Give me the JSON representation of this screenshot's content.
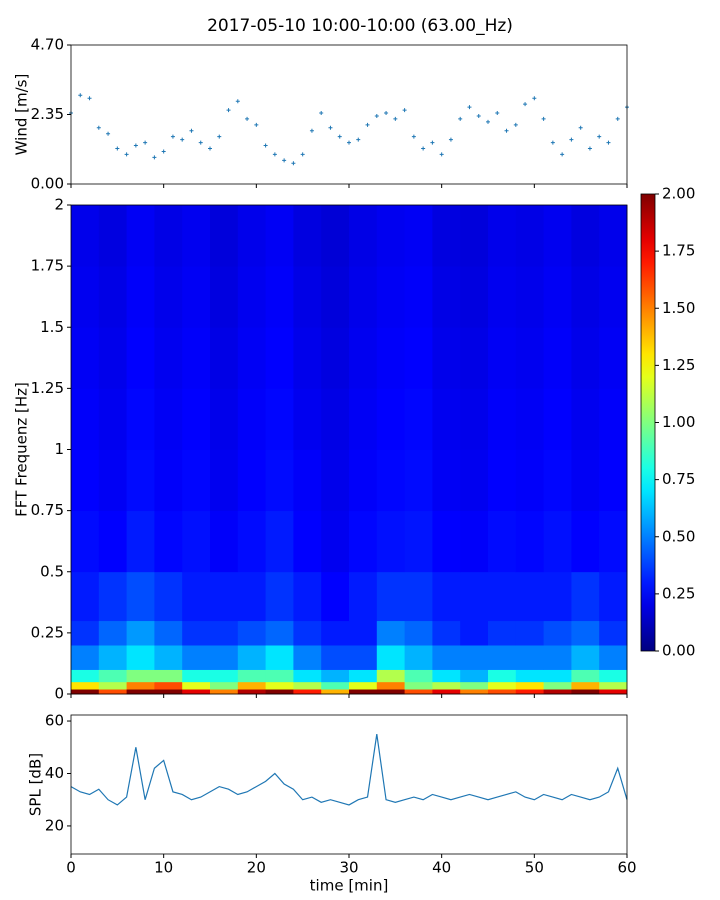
{
  "chart_data": [
    {
      "type": "scatter",
      "title": "2017-05-10 10:00-10:00 (63.00_Hz)",
      "y_label": "Wind [m/s]",
      "color": "#1f77b4",
      "x": [
        0,
        1,
        2,
        3,
        4,
        5,
        6,
        7,
        8,
        9,
        10,
        11,
        12,
        13,
        14,
        15,
        16,
        17,
        18,
        19,
        20,
        21,
        22,
        23,
        24,
        25,
        26,
        27,
        28,
        29,
        30,
        31,
        32,
        33,
        34,
        35,
        36,
        37,
        38,
        39,
        40,
        41,
        42,
        43,
        44,
        45,
        46,
        47,
        48,
        49,
        50,
        51,
        52,
        53,
        54,
        55,
        56,
        57,
        58,
        59,
        60
      ],
      "values": [
        2.4,
        3.0,
        2.9,
        1.9,
        1.7,
        1.2,
        1.0,
        1.3,
        1.4,
        0.9,
        1.1,
        1.6,
        1.5,
        1.8,
        1.4,
        1.2,
        1.6,
        2.5,
        2.8,
        2.2,
        2.0,
        1.3,
        1.0,
        0.8,
        0.7,
        1.0,
        1.8,
        2.4,
        1.9,
        1.6,
        1.4,
        1.5,
        2.0,
        2.3,
        2.4,
        2.2,
        2.5,
        1.6,
        1.2,
        1.4,
        1.0,
        1.5,
        2.2,
        2.6,
        2.3,
        2.1,
        2.4,
        1.8,
        2.0,
        2.7,
        2.9,
        2.2,
        1.4,
        1.0,
        1.5,
        1.9,
        1.2,
        1.6,
        1.4,
        2.2,
        2.6
      ],
      "xlim": [
        0,
        60
      ],
      "xticks": [
        0,
        10,
        20,
        30,
        40,
        50,
        60
      ],
      "ylim": [
        0,
        4.7
      ],
      "yticks": [
        {
          "value": 0,
          "label": "0.00"
        },
        {
          "value": 2.35,
          "label": "2.35"
        },
        {
          "value": 4.7,
          "label": "4.70"
        }
      ]
    },
    {
      "type": "heatmap",
      "y_label": "FFT Frequenz [Hz]",
      "colormap": "jet",
      "x_bins": [
        0,
        3,
        6,
        9,
        12,
        15,
        18,
        21,
        24,
        27,
        30,
        33,
        36,
        39,
        42,
        45,
        48,
        51,
        54,
        57,
        60
      ],
      "y_bins": [
        0,
        0.02,
        0.05,
        0.1,
        0.2,
        0.3,
        0.5,
        0.75,
        1,
        1.25,
        1.5,
        1.75,
        2
      ],
      "values": [
        [
          2,
          1.6,
          2,
          2,
          1.8,
          1.5,
          1.9,
          2,
          1.7,
          1.4,
          2,
          2,
          1.6,
          1.8,
          1.5,
          1.6,
          1.7,
          1.9,
          2,
          1.8
        ],
        [
          1.3,
          1.1,
          1.5,
          1.6,
          1.2,
          1.0,
          1.4,
          1.2,
          1.1,
          0.9,
          1.2,
          1.5,
          1.0,
          1.1,
          1.0,
          1.2,
          1.3,
          1.0,
          1.4,
          1.1
        ],
        [
          0.8,
          0.9,
          1.0,
          1.0,
          0.8,
          0.8,
          0.9,
          0.9,
          0.7,
          0.6,
          0.7,
          1.1,
          0.9,
          0.7,
          0.6,
          0.8,
          0.7,
          0.7,
          0.9,
          0.8
        ],
        [
          0.5,
          0.6,
          0.7,
          0.6,
          0.5,
          0.5,
          0.6,
          0.7,
          0.5,
          0.4,
          0.4,
          0.7,
          0.6,
          0.5,
          0.5,
          0.5,
          0.5,
          0.5,
          0.6,
          0.5
        ],
        [
          0.35,
          0.45,
          0.55,
          0.45,
          0.35,
          0.35,
          0.4,
          0.45,
          0.35,
          0.3,
          0.3,
          0.5,
          0.45,
          0.35,
          0.3,
          0.35,
          0.35,
          0.4,
          0.45,
          0.35
        ],
        [
          0.3,
          0.35,
          0.4,
          0.35,
          0.3,
          0.3,
          0.3,
          0.35,
          0.3,
          0.25,
          0.3,
          0.35,
          0.35,
          0.3,
          0.3,
          0.3,
          0.3,
          0.3,
          0.35,
          0.3
        ],
        [
          0.27,
          0.25,
          0.3,
          0.26,
          0.28,
          0.24,
          0.27,
          0.3,
          0.25,
          0.22,
          0.26,
          0.28,
          0.29,
          0.25,
          0.24,
          0.27,
          0.26,
          0.28,
          0.25,
          0.27
        ],
        [
          0.25,
          0.23,
          0.27,
          0.24,
          0.26,
          0.22,
          0.25,
          0.27,
          0.24,
          0.21,
          0.24,
          0.26,
          0.27,
          0.23,
          0.22,
          0.25,
          0.24,
          0.26,
          0.23,
          0.25
        ],
        [
          0.24,
          0.22,
          0.26,
          0.23,
          0.25,
          0.21,
          0.24,
          0.26,
          0.22,
          0.2,
          0.23,
          0.25,
          0.26,
          0.22,
          0.21,
          0.24,
          0.23,
          0.25,
          0.22,
          0.24
        ],
        [
          0.23,
          0.21,
          0.25,
          0.22,
          0.24,
          0.2,
          0.23,
          0.25,
          0.21,
          0.19,
          0.22,
          0.24,
          0.25,
          0.21,
          0.2,
          0.23,
          0.22,
          0.24,
          0.21,
          0.23
        ],
        [
          0.22,
          0.2,
          0.24,
          0.21,
          0.23,
          0.19,
          0.22,
          0.24,
          0.2,
          0.18,
          0.21,
          0.23,
          0.24,
          0.2,
          0.19,
          0.22,
          0.21,
          0.23,
          0.2,
          0.22
        ],
        [
          0.21,
          0.19,
          0.23,
          0.2,
          0.22,
          0.18,
          0.21,
          0.23,
          0.19,
          0.17,
          0.2,
          0.22,
          0.23,
          0.19,
          0.18,
          0.21,
          0.2,
          0.22,
          0.19,
          0.21
        ]
      ],
      "xlim": [
        0,
        60
      ],
      "xticks": [
        0,
        10,
        20,
        30,
        40,
        50,
        60
      ],
      "ylim": [
        0,
        2
      ],
      "yticks": [
        0,
        0.25,
        0.5,
        0.75,
        1,
        1.25,
        1.5,
        1.75,
        2
      ],
      "zlim": [
        0,
        2
      ],
      "zticks": [
        {
          "value": 0,
          "label": "0.00"
        },
        {
          "value": 0.25,
          "label": "0.25"
        },
        {
          "value": 0.5,
          "label": "0.50"
        },
        {
          "value": 0.75,
          "label": "0.75"
        },
        {
          "value": 1,
          "label": "1.00"
        },
        {
          "value": 1.25,
          "label": "1.25"
        },
        {
          "value": 1.5,
          "label": "1.50"
        },
        {
          "value": 1.75,
          "label": "1.75"
        },
        {
          "value": 2,
          "label": "2.00"
        }
      ]
    },
    {
      "type": "line",
      "y_label": "SPL [dB]",
      "x_label": "time [min]",
      "color": "#1f77b4",
      "x": [
        0,
        1,
        2,
        3,
        4,
        5,
        6,
        7,
        8,
        9,
        10,
        11,
        12,
        13,
        14,
        15,
        16,
        17,
        18,
        19,
        20,
        21,
        22,
        23,
        24,
        25,
        26,
        27,
        28,
        29,
        30,
        31,
        32,
        33,
        34,
        35,
        36,
        37,
        38,
        39,
        40,
        41,
        42,
        43,
        44,
        45,
        46,
        47,
        48,
        49,
        50,
        51,
        52,
        53,
        54,
        55,
        56,
        57,
        58,
        59,
        60
      ],
      "values": [
        35,
        33,
        32,
        34,
        30,
        28,
        31,
        50,
        30,
        42,
        45,
        33,
        32,
        30,
        31,
        33,
        35,
        34,
        32,
        33,
        35,
        37,
        40,
        36,
        34,
        30,
        31,
        29,
        30,
        29,
        28,
        30,
        31,
        55,
        30,
        29,
        30,
        31,
        30,
        32,
        31,
        30,
        31,
        32,
        31,
        30,
        31,
        32,
        33,
        31,
        30,
        32,
        31,
        30,
        32,
        31,
        30,
        31,
        33,
        42,
        30
      ],
      "xlim": [
        0,
        60
      ],
      "xticks": [
        0,
        10,
        20,
        30,
        40,
        50,
        60
      ],
      "ylim": [
        9.3,
        62.3
      ],
      "yticks": [
        20,
        40,
        60
      ]
    }
  ]
}
